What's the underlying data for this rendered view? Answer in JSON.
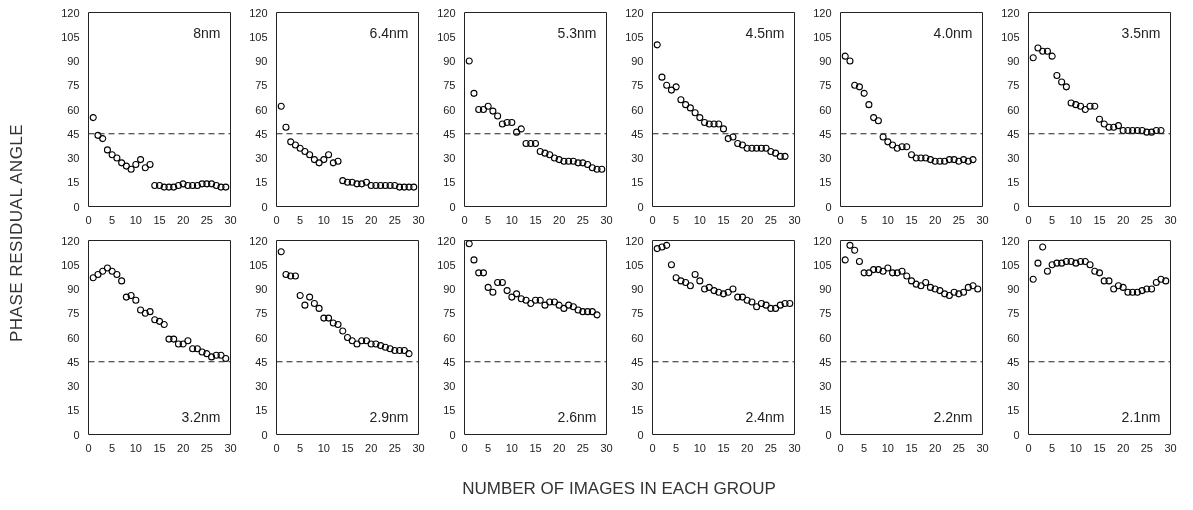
{
  "chart_data": [
    {
      "type": "scatter",
      "ylabel": "PHASE RESIDUAL ANGLE",
      "annotations": [
        "8nm"
      ],
      "x": [
        1,
        2,
        3,
        4,
        5,
        6,
        7,
        8,
        9,
        10,
        11,
        12,
        13,
        14,
        15,
        16,
        17,
        18,
        19,
        20,
        21,
        22,
        23,
        24,
        25,
        26,
        27,
        28,
        29
      ],
      "values": [
        55,
        44,
        42,
        35,
        32,
        30,
        27,
        25,
        23,
        26,
        29,
        24,
        26,
        13,
        13,
        12,
        12,
        12,
        13,
        14,
        13,
        13,
        13,
        14,
        14,
        14,
        13,
        12,
        12
      ],
      "color": "#000000",
      "marker": "circle",
      "grid": false,
      "xlim": [
        0,
        30
      ],
      "ylim": [
        0,
        120
      ],
      "xticks": [
        0,
        5,
        10,
        15,
        20,
        25,
        30
      ],
      "yticks": [
        0,
        15,
        30,
        45,
        60,
        75,
        90,
        105,
        120
      ],
      "ref_lines": [
        {
          "axis": "y",
          "value": 45,
          "line_style": "dashed"
        }
      ]
    },
    {
      "type": "scatter",
      "annotations": [
        "6.4nm"
      ],
      "x": [
        1,
        2,
        3,
        4,
        5,
        6,
        7,
        8,
        9,
        10,
        11,
        12,
        13,
        14,
        15,
        16,
        17,
        18,
        19,
        20,
        21,
        22,
        23,
        24,
        25,
        26,
        27,
        28,
        29
      ],
      "values": [
        62,
        49,
        40,
        38,
        36,
        34,
        32,
        29,
        27,
        29,
        32,
        27,
        28,
        16,
        15,
        15,
        14,
        14,
        15,
        13,
        13,
        13,
        13,
        13,
        13,
        12,
        12,
        12,
        12
      ],
      "color": "#000000",
      "marker": "circle",
      "grid": false,
      "xlim": [
        0,
        30
      ],
      "ylim": [
        0,
        120
      ],
      "xticks": [
        0,
        5,
        10,
        15,
        20,
        25,
        30
      ],
      "yticks": [
        0,
        15,
        30,
        45,
        60,
        75,
        90,
        105,
        120
      ],
      "ref_lines": [
        {
          "axis": "y",
          "value": 45,
          "line_style": "dashed"
        }
      ]
    },
    {
      "type": "scatter",
      "annotations": [
        "5.3nm"
      ],
      "x": [
        1,
        2,
        3,
        4,
        5,
        6,
        7,
        8,
        9,
        10,
        11,
        12,
        13,
        14,
        15,
        16,
        17,
        18,
        19,
        20,
        21,
        22,
        23,
        24,
        25,
        26,
        27,
        28,
        29
      ],
      "values": [
        90,
        70,
        60,
        60,
        62,
        59,
        56,
        51,
        52,
        52,
        46,
        48,
        39,
        39,
        39,
        34,
        33,
        32,
        30,
        29,
        28,
        28,
        28,
        27,
        27,
        26,
        24,
        23,
        23
      ],
      "color": "#000000",
      "marker": "circle",
      "grid": false,
      "xlim": [
        0,
        30
      ],
      "ylim": [
        0,
        120
      ],
      "xticks": [
        0,
        5,
        10,
        15,
        20,
        25,
        30
      ],
      "yticks": [
        0,
        15,
        30,
        45,
        60,
        75,
        90,
        105,
        120
      ],
      "ref_lines": [
        {
          "axis": "y",
          "value": 45,
          "line_style": "dashed"
        }
      ]
    },
    {
      "type": "scatter",
      "annotations": [
        "4.5nm"
      ],
      "x": [
        1,
        2,
        3,
        4,
        5,
        6,
        7,
        8,
        9,
        10,
        11,
        12,
        13,
        14,
        15,
        16,
        17,
        18,
        19,
        20,
        21,
        22,
        23,
        24,
        25,
        26,
        27,
        28
      ],
      "values": [
        100,
        80,
        75,
        72,
        74,
        66,
        63,
        61,
        58,
        55,
        52,
        51,
        51,
        51,
        48,
        42,
        43,
        39,
        38,
        36,
        36,
        36,
        36,
        36,
        34,
        33,
        31,
        31
      ],
      "color": "#000000",
      "marker": "circle",
      "grid": false,
      "xlim": [
        0,
        30
      ],
      "ylim": [
        0,
        120
      ],
      "xticks": [
        0,
        5,
        10,
        15,
        20,
        25,
        30
      ],
      "yticks": [
        0,
        15,
        30,
        45,
        60,
        75,
        90,
        105,
        120
      ],
      "ref_lines": [
        {
          "axis": "y",
          "value": 45,
          "line_style": "dashed"
        }
      ]
    },
    {
      "type": "scatter",
      "annotations": [
        "4.0nm"
      ],
      "x": [
        1,
        2,
        3,
        4,
        5,
        6,
        7,
        8,
        9,
        10,
        11,
        12,
        13,
        14,
        15,
        16,
        17,
        18,
        19,
        20,
        21,
        22,
        23,
        24,
        25,
        26,
        27,
        28
      ],
      "values": [
        93,
        90,
        75,
        74,
        70,
        63,
        55,
        53,
        43,
        40,
        38,
        36,
        37,
        37,
        32,
        30,
        30,
        30,
        29,
        28,
        28,
        28,
        29,
        29,
        28,
        29,
        28,
        29
      ],
      "color": "#000000",
      "marker": "circle",
      "grid": false,
      "xlim": [
        0,
        30
      ],
      "ylim": [
        0,
        120
      ],
      "xticks": [
        0,
        5,
        10,
        15,
        20,
        25,
        30
      ],
      "yticks": [
        0,
        15,
        30,
        45,
        60,
        75,
        90,
        105,
        120
      ],
      "ref_lines": [
        {
          "axis": "y",
          "value": 45,
          "line_style": "dashed"
        }
      ]
    },
    {
      "type": "scatter",
      "annotations": [
        "3.5nm"
      ],
      "x": [
        1,
        2,
        3,
        4,
        5,
        6,
        7,
        8,
        9,
        10,
        11,
        12,
        13,
        14,
        15,
        16,
        17,
        18,
        19,
        20,
        21,
        22,
        23,
        24,
        25,
        26,
        27,
        28
      ],
      "values": [
        92,
        98,
        96,
        96,
        93,
        81,
        77,
        74,
        64,
        63,
        62,
        60,
        62,
        62,
        54,
        51,
        49,
        49,
        50,
        47,
        47,
        47,
        47,
        47,
        46,
        46,
        47,
        47
      ],
      "color": "#000000",
      "marker": "circle",
      "grid": false,
      "xlim": [
        0,
        30
      ],
      "ylim": [
        0,
        120
      ],
      "xticks": [
        0,
        5,
        10,
        15,
        20,
        25,
        30
      ],
      "yticks": [
        0,
        15,
        30,
        45,
        60,
        75,
        90,
        105,
        120
      ],
      "ref_lines": [
        {
          "axis": "y",
          "value": 45,
          "line_style": "dashed"
        }
      ]
    },
    {
      "type": "scatter",
      "annotations": [
        "3.2nm"
      ],
      "x": [
        1,
        2,
        3,
        4,
        5,
        6,
        7,
        8,
        9,
        10,
        11,
        12,
        13,
        14,
        15,
        16,
        17,
        18,
        19,
        20,
        21,
        22,
        23,
        24,
        25,
        26,
        27,
        28,
        29
      ],
      "values": [
        97,
        99,
        101,
        103,
        101,
        99,
        95,
        85,
        86,
        83,
        77,
        75,
        76,
        71,
        70,
        68,
        59,
        59,
        56,
        56,
        58,
        53,
        53,
        51,
        50,
        48,
        49,
        49,
        47
      ],
      "color": "#000000",
      "marker": "circle",
      "grid": false,
      "xlim": [
        0,
        30
      ],
      "ylim": [
        0,
        120
      ],
      "xticks": [
        0,
        5,
        10,
        15,
        20,
        25,
        30
      ],
      "yticks": [
        0,
        15,
        30,
        45,
        60,
        75,
        90,
        105,
        120
      ],
      "ref_lines": [
        {
          "axis": "y",
          "value": 45,
          "line_style": "dashed"
        }
      ]
    },
    {
      "type": "scatter",
      "annotations": [
        "2.9nm"
      ],
      "x": [
        1,
        2,
        3,
        4,
        5,
        6,
        7,
        8,
        9,
        10,
        11,
        12,
        13,
        14,
        15,
        16,
        17,
        18,
        19,
        20,
        21,
        22,
        23,
        24,
        25,
        26,
        27,
        28
      ],
      "values": [
        113,
        99,
        98,
        98,
        86,
        80,
        85,
        81,
        78,
        72,
        72,
        69,
        68,
        64,
        60,
        58,
        56,
        58,
        58,
        56,
        56,
        55,
        54,
        53,
        52,
        52,
        52,
        50
      ],
      "color": "#000000",
      "marker": "circle",
      "grid": false,
      "xlim": [
        0,
        30
      ],
      "ylim": [
        0,
        120
      ],
      "xticks": [
        0,
        5,
        10,
        15,
        20,
        25,
        30
      ],
      "yticks": [
        0,
        15,
        30,
        45,
        60,
        75,
        90,
        105,
        120
      ],
      "ref_lines": [
        {
          "axis": "y",
          "value": 45,
          "line_style": "dashed"
        }
      ]
    },
    {
      "type": "scatter",
      "xlabel": "NUMBER OF IMAGES IN EACH GROUP",
      "annotations": [
        "2.6nm"
      ],
      "x": [
        1,
        2,
        3,
        4,
        5,
        6,
        7,
        8,
        9,
        10,
        11,
        12,
        13,
        14,
        15,
        16,
        17,
        18,
        19,
        20,
        21,
        22,
        23,
        24,
        25,
        26,
        27,
        28
      ],
      "values": [
        118,
        108,
        100,
        100,
        91,
        88,
        94,
        94,
        89,
        85,
        87,
        84,
        83,
        81,
        83,
        83,
        80,
        82,
        82,
        80,
        78,
        80,
        79,
        77,
        76,
        76,
        76,
        74
      ],
      "color": "#000000",
      "marker": "circle",
      "grid": false,
      "xlim": [
        0,
        30
      ],
      "ylim": [
        0,
        120
      ],
      "xticks": [
        0,
        5,
        10,
        15,
        20,
        25,
        30
      ],
      "yticks": [
        0,
        15,
        30,
        45,
        60,
        75,
        90,
        105,
        120
      ],
      "ref_lines": [
        {
          "axis": "y",
          "value": 45,
          "line_style": "dashed"
        }
      ]
    },
    {
      "type": "scatter",
      "annotations": [
        "2.4nm"
      ],
      "x": [
        1,
        2,
        3,
        4,
        5,
        6,
        7,
        8,
        9,
        10,
        11,
        12,
        13,
        14,
        15,
        16,
        17,
        18,
        19,
        20,
        21,
        22,
        23,
        24,
        25,
        26,
        27,
        28,
        29
      ],
      "values": [
        115,
        116,
        117,
        105,
        97,
        95,
        94,
        92,
        99,
        95,
        90,
        91,
        89,
        88,
        87,
        88,
        90,
        85,
        85,
        83,
        82,
        79,
        81,
        80,
        78,
        78,
        80,
        81,
        81
      ],
      "color": "#000000",
      "marker": "circle",
      "grid": false,
      "xlim": [
        0,
        30
      ],
      "ylim": [
        0,
        120
      ],
      "xticks": [
        0,
        5,
        10,
        15,
        20,
        25,
        30
      ],
      "yticks": [
        0,
        15,
        30,
        45,
        60,
        75,
        90,
        105,
        120
      ],
      "ref_lines": [
        {
          "axis": "y",
          "value": 45,
          "line_style": "dashed"
        }
      ]
    },
    {
      "type": "scatter",
      "annotations": [
        "2.2nm"
      ],
      "x": [
        1,
        2,
        3,
        4,
        5,
        6,
        7,
        8,
        9,
        10,
        11,
        12,
        13,
        14,
        15,
        16,
        17,
        18,
        19,
        20,
        21,
        22,
        23,
        24,
        25,
        26,
        27,
        28,
        29
      ],
      "values": [
        108,
        117,
        114,
        107,
        100,
        100,
        102,
        102,
        101,
        103,
        100,
        100,
        101,
        98,
        95,
        93,
        92,
        94,
        91,
        90,
        89,
        87,
        86,
        88,
        87,
        88,
        91,
        92,
        90
      ],
      "color": "#000000",
      "marker": "circle",
      "grid": false,
      "xlim": [
        0,
        30
      ],
      "ylim": [
        0,
        120
      ],
      "xticks": [
        0,
        5,
        10,
        15,
        20,
        25,
        30
      ],
      "yticks": [
        0,
        15,
        30,
        45,
        60,
        75,
        90,
        105,
        120
      ],
      "ref_lines": [
        {
          "axis": "y",
          "value": 45,
          "line_style": "dashed"
        }
      ]
    },
    {
      "type": "scatter",
      "annotations": [
        "2.1nm"
      ],
      "x": [
        1,
        2,
        3,
        4,
        5,
        6,
        7,
        8,
        9,
        10,
        11,
        12,
        13,
        14,
        15,
        16,
        17,
        18,
        19,
        20,
        21,
        22,
        23,
        24,
        25,
        26,
        27,
        28,
        29
      ],
      "values": [
        96,
        106,
        116,
        101,
        105,
        106,
        106,
        107,
        107,
        106,
        107,
        107,
        105,
        101,
        100,
        95,
        95,
        90,
        92,
        91,
        88,
        88,
        88,
        89,
        90,
        90,
        94,
        96,
        95
      ],
      "color": "#000000",
      "marker": "circle",
      "grid": false,
      "xlim": [
        0,
        30
      ],
      "ylim": [
        0,
        120
      ],
      "xticks": [
        0,
        5,
        10,
        15,
        20,
        25,
        30
      ],
      "yticks": [
        0,
        15,
        30,
        45,
        60,
        75,
        90,
        105,
        120
      ],
      "ref_lines": [
        {
          "axis": "y",
          "value": 45,
          "line_style": "dashed"
        }
      ]
    }
  ]
}
